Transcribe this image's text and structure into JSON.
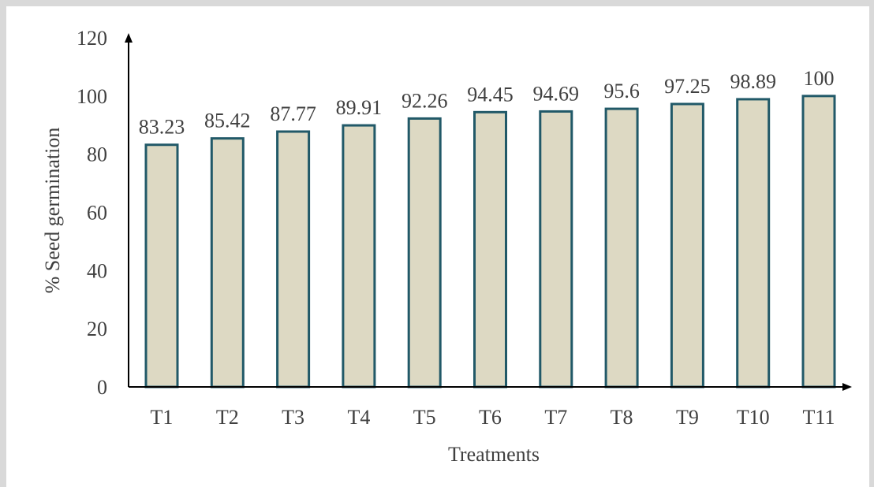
{
  "chart_data": {
    "type": "bar",
    "categories": [
      "T1",
      "T2",
      "T3",
      "T4",
      "T5",
      "T6",
      "T7",
      "T8",
      "T9",
      "T10",
      "T11"
    ],
    "values": [
      83.23,
      85.42,
      87.77,
      89.91,
      92.26,
      94.45,
      94.69,
      95.6,
      97.25,
      98.89,
      100
    ],
    "data_labels": [
      "83.23",
      "85.42",
      "87.77",
      "89.91",
      "92.26",
      "94.45",
      "94.69",
      "95.6",
      "97.25",
      "98.89",
      "100"
    ],
    "xlabel": "Treatments",
    "ylabel": "% Seed germination",
    "ylim": [
      0,
      120
    ],
    "yticks": [
      "0",
      "20",
      "40",
      "60",
      "80",
      "100",
      "120"
    ],
    "grid": false,
    "legend": "none",
    "colors": {
      "bar_fill": "#ddd9c3",
      "bar_stroke": "#215968",
      "axis": "#000000",
      "frame": "#d9d9d9"
    }
  }
}
